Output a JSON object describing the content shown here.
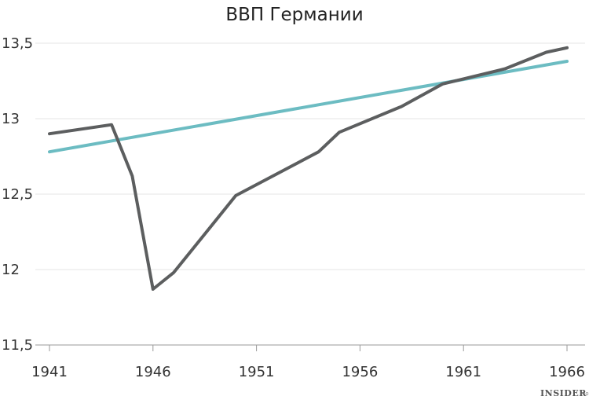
{
  "chart_data": {
    "type": "line",
    "title": "ВВП Германии",
    "xlabel": "",
    "ylabel": "",
    "xlim": [
      1941,
      1966
    ],
    "ylim": [
      11.5,
      13.5
    ],
    "x_ticks": [
      "1941",
      "1946",
      "1951",
      "1956",
      "1961",
      "1966"
    ],
    "y_ticks": [
      "11,5",
      "12",
      "12,5",
      "13",
      "13,5"
    ],
    "grid": true,
    "legend": "none",
    "series": [
      {
        "color": "#5c5e5f",
        "points": [
          {
            "x": 1941,
            "y": 12.9
          },
          {
            "x": 1944,
            "y": 12.96
          },
          {
            "x": 1945,
            "y": 12.62
          },
          {
            "x": 1946,
            "y": 11.87
          },
          {
            "x": 1947,
            "y": 11.98
          },
          {
            "x": 1950,
            "y": 12.49
          },
          {
            "x": 1954,
            "y": 12.78
          },
          {
            "x": 1955,
            "y": 12.91
          },
          {
            "x": 1958,
            "y": 13.08
          },
          {
            "x": 1960,
            "y": 13.23
          },
          {
            "x": 1963,
            "y": 13.33
          },
          {
            "x": 1965,
            "y": 13.44
          },
          {
            "x": 1966,
            "y": 13.47
          }
        ]
      },
      {
        "color": "#6cbcc2",
        "points": [
          {
            "x": 1941,
            "y": 12.78
          },
          {
            "x": 1966,
            "y": 13.38
          }
        ]
      }
    ]
  },
  "watermark": {
    "main": "INSIDER",
    "sub": "PRO"
  }
}
